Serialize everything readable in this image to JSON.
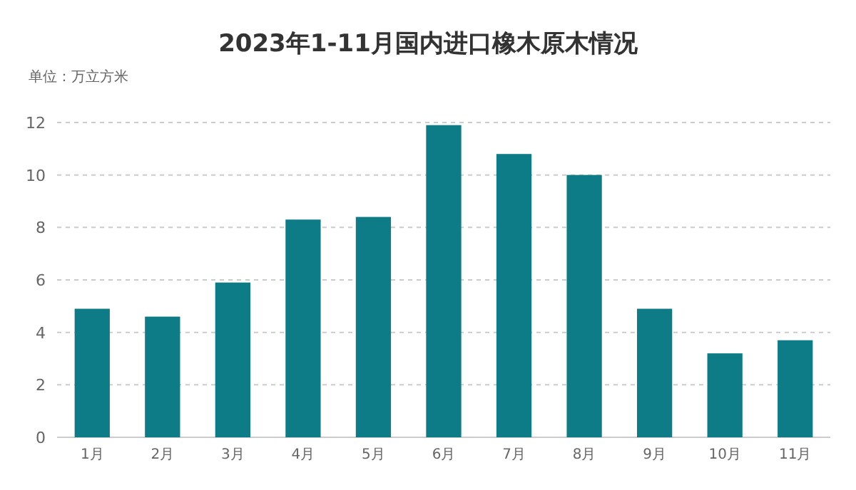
{
  "chart_data": {
    "type": "bar",
    "title": "2023年1-11月国内进口橡木原木情况",
    "ylabel": "单位：万立方米",
    "categories": [
      "1月",
      "2月",
      "3月",
      "4月",
      "5月",
      "6月",
      "7月",
      "8月",
      "9月",
      "10月",
      "11月"
    ],
    "values": [
      4.9,
      4.6,
      5.9,
      8.3,
      8.4,
      11.9,
      10.8,
      10.0,
      4.9,
      3.2,
      3.7
    ],
    "color": "#0e7c86",
    "ylim": [
      0,
      12
    ],
    "yticks": [
      0,
      2,
      4,
      6,
      8,
      10,
      12
    ],
    "grid": "y"
  }
}
